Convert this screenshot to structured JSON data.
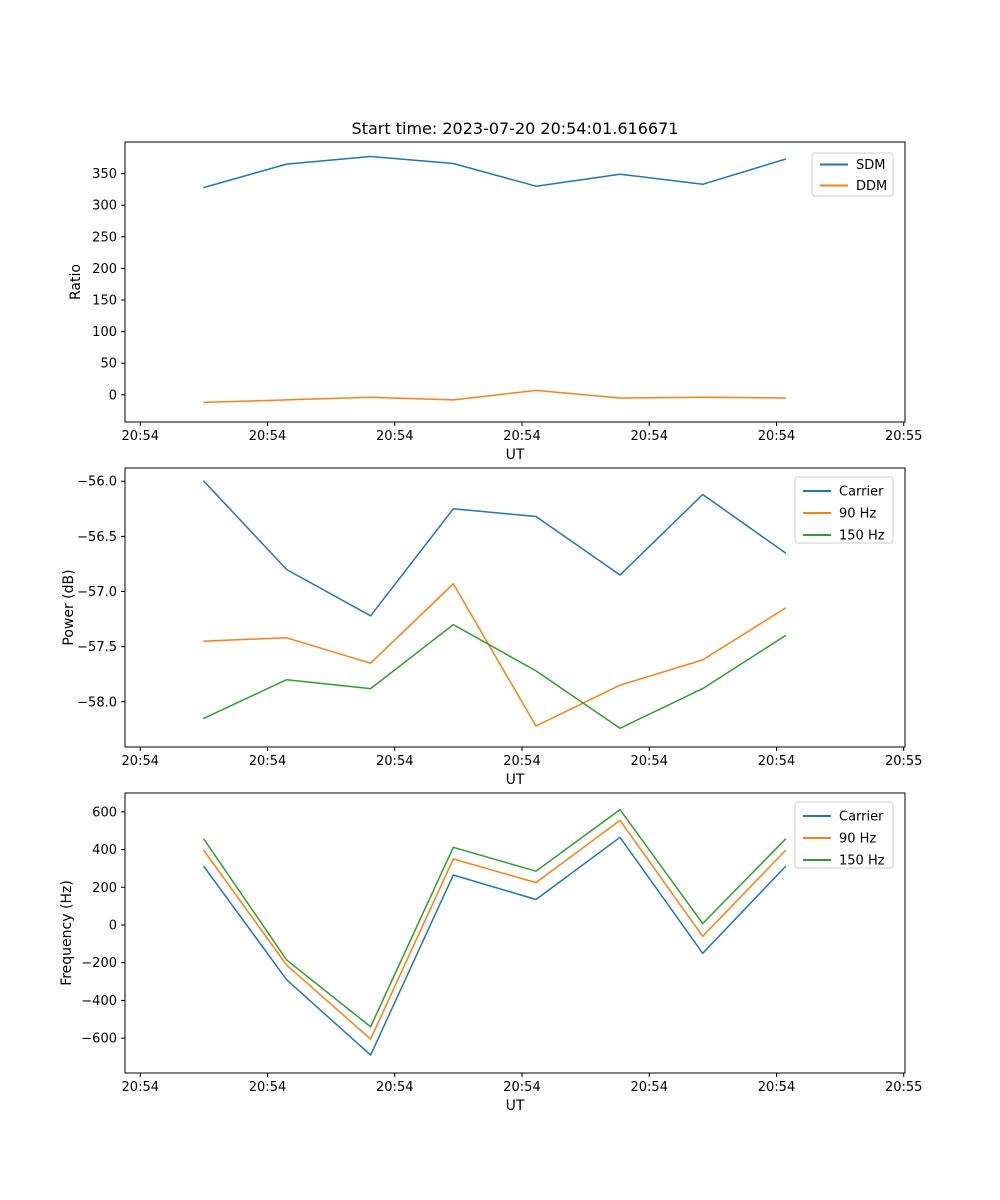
{
  "figure": {
    "title": "Start time: 2023-07-20 20:54:01.616671",
    "background": "#ffffff",
    "axis_color": "#000000",
    "legend_frame_color": "#cccccc"
  },
  "chart_data": [
    {
      "id": "ratio",
      "type": "line",
      "title": "Start time: 2023-07-20 20:54:01.616671",
      "xlabel": "UT",
      "ylabel": "Ratio",
      "grid": false,
      "legend_position": "upper right",
      "xlim_seconds": [
        -1.2,
        60.1
      ],
      "x_tick_seconds": [
        0,
        10,
        20,
        30,
        40,
        50,
        60
      ],
      "x_tick_labels": [
        "20:54",
        "20:54",
        "20:54",
        "20:54",
        "20:54",
        "20:54",
        "20:55"
      ],
      "ylim": [
        -43,
        400
      ],
      "y_ticks": [
        0,
        50,
        100,
        150,
        200,
        250,
        300,
        350
      ],
      "y_tick_labels": [
        "0",
        "50",
        "100",
        "150",
        "200",
        "250",
        "300",
        "350"
      ],
      "x_seconds": [
        5.0,
        11.5,
        18.1,
        24.6,
        31.1,
        37.7,
        44.2,
        50.7
      ],
      "series": [
        {
          "name": "SDM",
          "color": "#1f77b4",
          "values": [
            328,
            365,
            377,
            366,
            330,
            349,
            333,
            373
          ]
        },
        {
          "name": "DDM",
          "color": "#ff7f0e",
          "values": [
            -12,
            -8,
            -4,
            -8,
            7,
            -5,
            -4,
            -5
          ]
        }
      ]
    },
    {
      "id": "power",
      "type": "line",
      "title": "",
      "xlabel": "UT",
      "ylabel": "Power (dB)",
      "grid": false,
      "legend_position": "upper right",
      "xlim_seconds": [
        -1.2,
        60.1
      ],
      "x_tick_seconds": [
        0,
        10,
        20,
        30,
        40,
        50,
        60
      ],
      "x_tick_labels": [
        "20:54",
        "20:54",
        "20:54",
        "20:54",
        "20:54",
        "20:54",
        "20:55"
      ],
      "ylim": [
        -58.41,
        -55.88
      ],
      "y_ticks": [
        -56.0,
        -56.5,
        -57.0,
        -57.5,
        -58.0
      ],
      "y_tick_labels": [
        "−56.0",
        "−56.5",
        "−57.0",
        "−57.5",
        "−58.0"
      ],
      "x_seconds": [
        5.0,
        11.5,
        18.1,
        24.6,
        31.1,
        37.7,
        44.2,
        50.7
      ],
      "series": [
        {
          "name": "Carrier",
          "color": "#1f77b4",
          "values": [
            -56.0,
            -56.8,
            -57.22,
            -56.25,
            -56.32,
            -56.85,
            -56.12,
            -56.65
          ]
        },
        {
          "name": "90 Hz",
          "color": "#ff7f0e",
          "values": [
            -57.45,
            -57.42,
            -57.65,
            -56.93,
            -58.22,
            -57.85,
            -57.62,
            -57.15
          ]
        },
        {
          "name": "150 Hz",
          "color": "#2ca02c",
          "values": [
            -58.15,
            -57.8,
            -57.88,
            -57.3,
            -57.72,
            -58.24,
            -57.88,
            -57.4
          ]
        }
      ]
    },
    {
      "id": "frequency",
      "type": "line",
      "title": "",
      "xlabel": "UT",
      "ylabel": "Frequency (Hz)",
      "grid": false,
      "legend_position": "upper right",
      "xlim_seconds": [
        -1.2,
        60.1
      ],
      "x_tick_seconds": [
        0,
        10,
        20,
        30,
        40,
        50,
        60
      ],
      "x_tick_labels": [
        "20:54",
        "20:54",
        "20:54",
        "20:54",
        "20:54",
        "20:54",
        "20:55"
      ],
      "ylim": [
        -785,
        700
      ],
      "y_ticks": [
        600,
        400,
        200,
        0,
        -200,
        -400,
        -600
      ],
      "y_tick_labels": [
        "600",
        "400",
        "200",
        "0",
        "−200",
        "−400",
        "−600"
      ],
      "x_seconds": [
        5.0,
        11.5,
        18.1,
        24.6,
        31.1,
        37.7,
        44.2,
        50.7
      ],
      "series": [
        {
          "name": "Carrier",
          "color": "#1f77b4",
          "values": [
            310,
            -290,
            -690,
            265,
            135,
            465,
            -150,
            310
          ]
        },
        {
          "name": "90 Hz",
          "color": "#ff7f0e",
          "values": [
            395,
            -212,
            -605,
            350,
            225,
            555,
            -60,
            395
          ]
        },
        {
          "name": "150 Hz",
          "color": "#2ca02c",
          "values": [
            455,
            -185,
            -540,
            412,
            285,
            612,
            8,
            455
          ]
        }
      ]
    }
  ]
}
